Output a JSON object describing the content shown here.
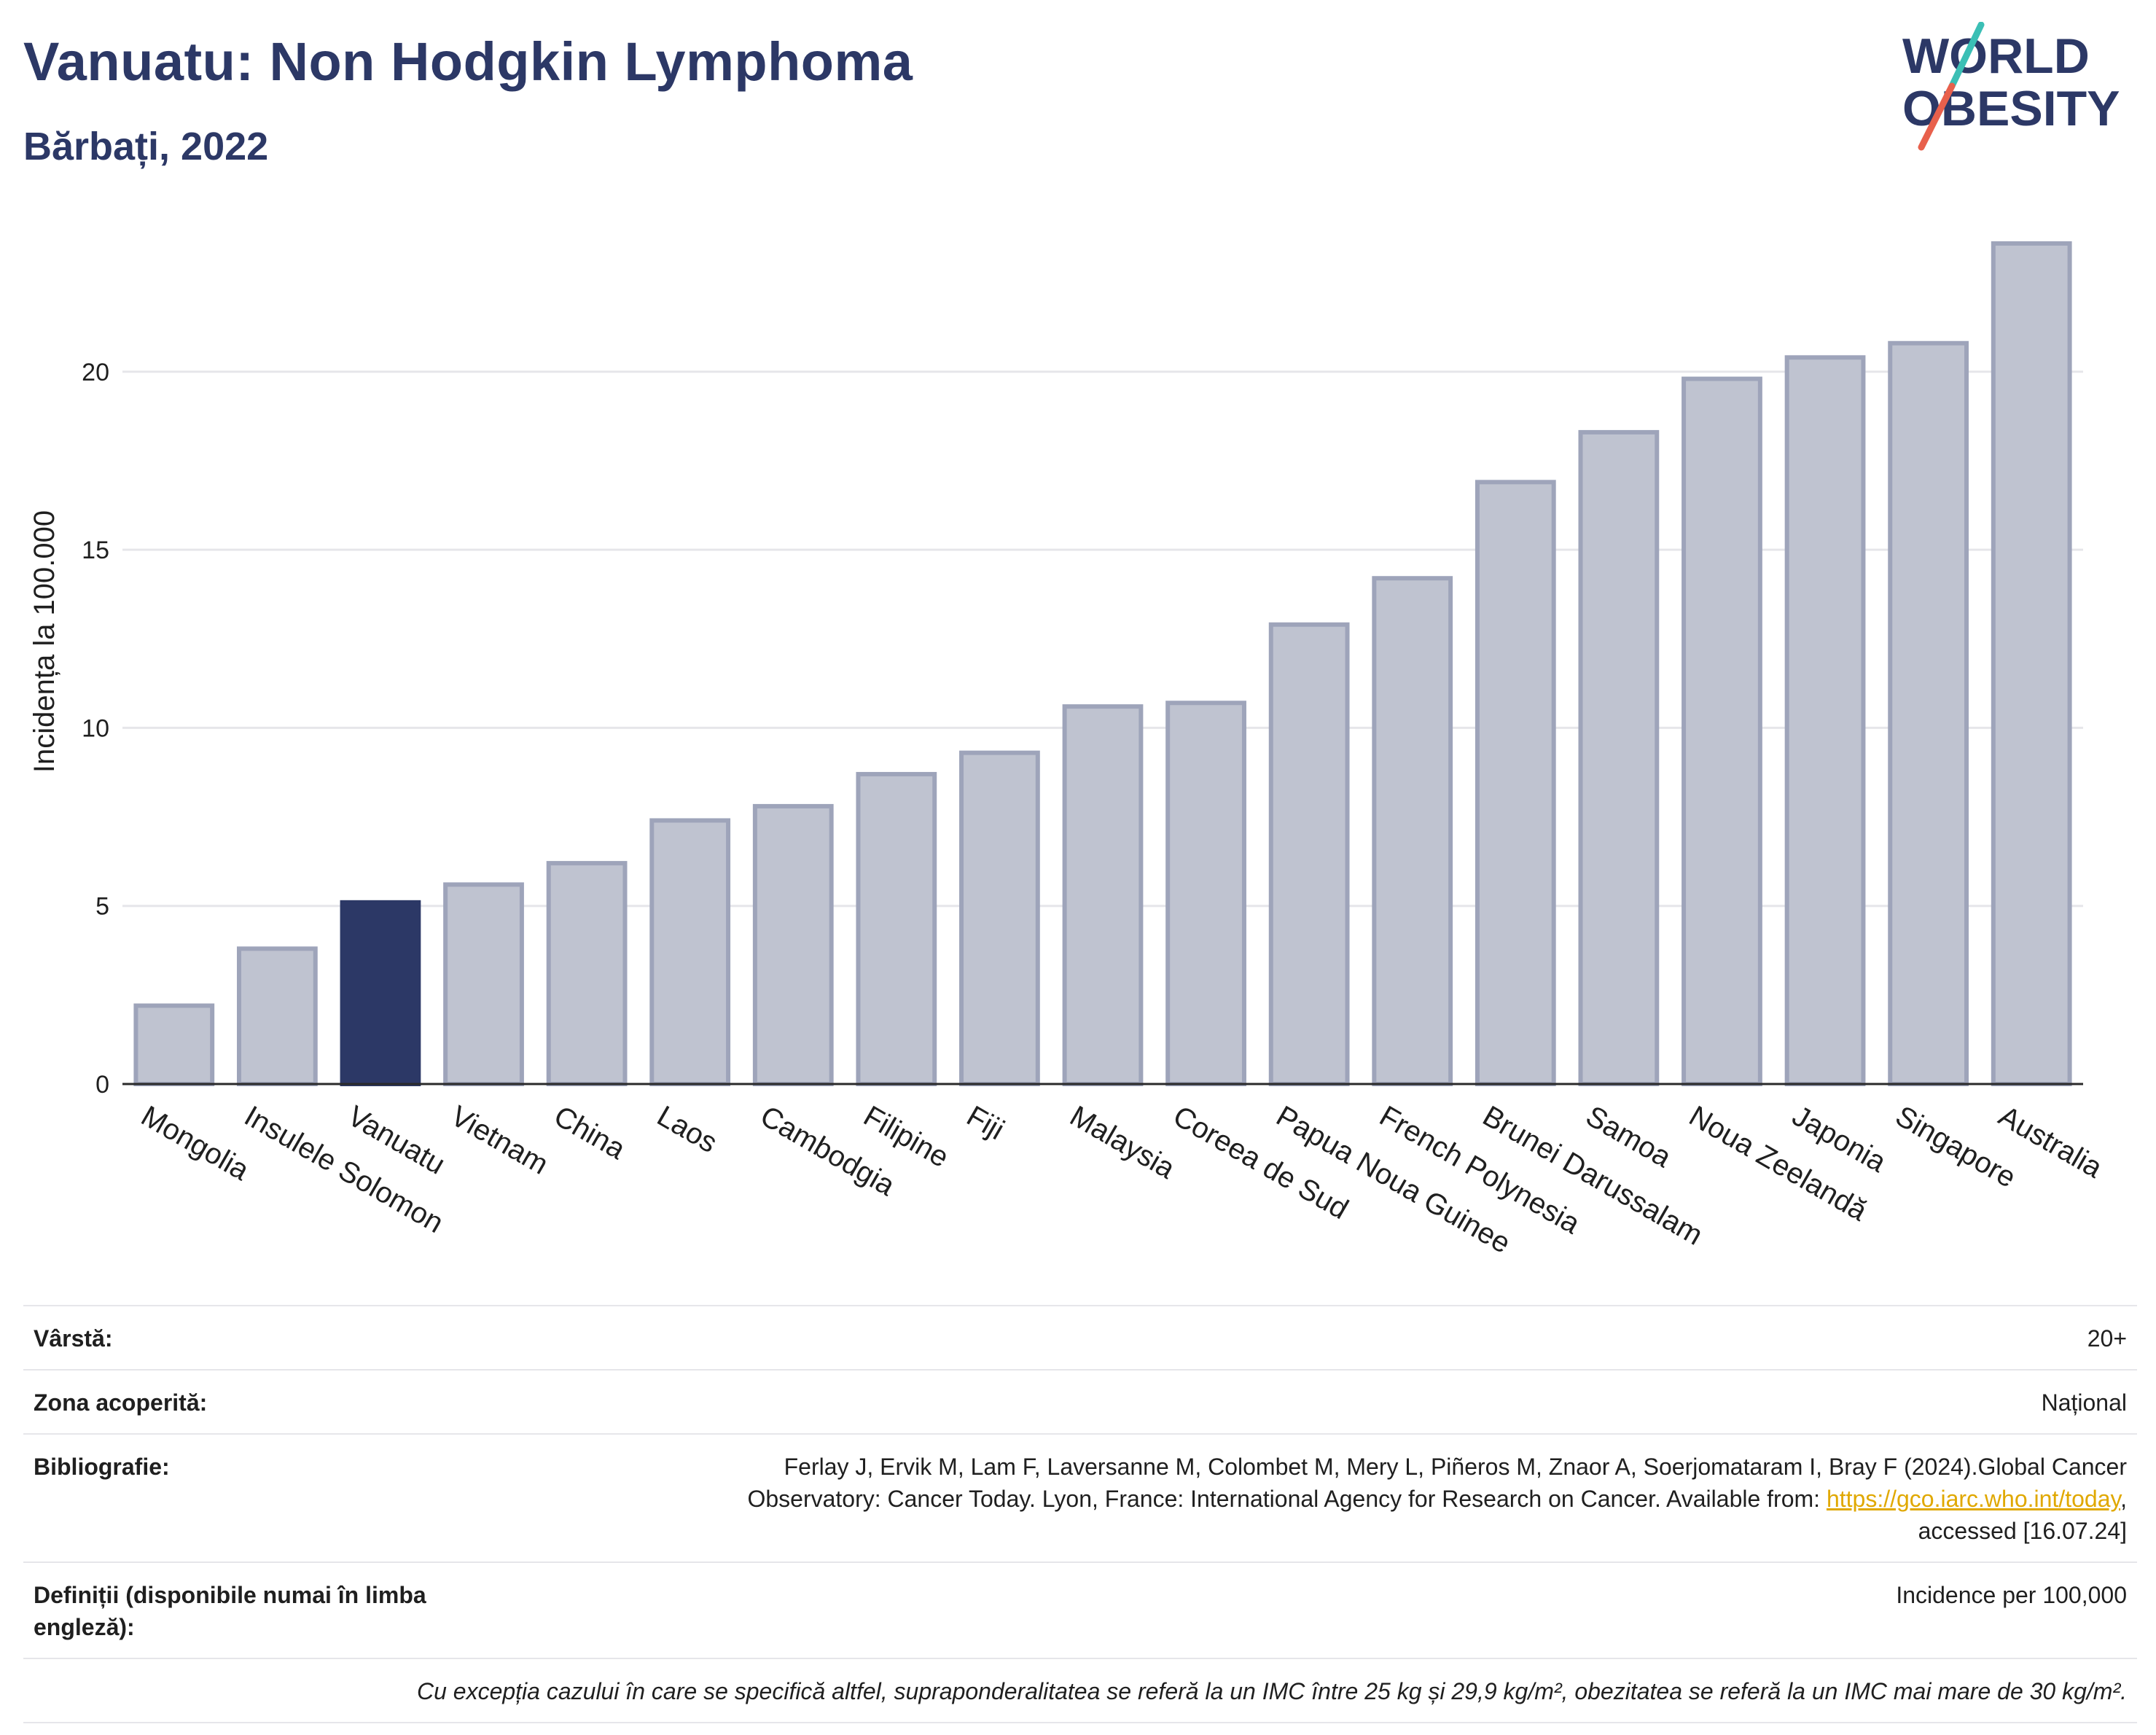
{
  "header": {
    "title": "Vanuatu: Non Hodgkin Lymphoma",
    "subtitle": "Bărbați, 2022"
  },
  "logo": {
    "line1": "WORLD",
    "line2": "OBESITY",
    "colors": {
      "text": "#2c3866",
      "slash_top": "#3bbfb5",
      "slash_bottom": "#e8604c"
    }
  },
  "chart_data": {
    "type": "bar",
    "ylabel": "Incidența la 100.000",
    "ylim": [
      0,
      24.5
    ],
    "yticks": [
      0,
      5,
      10,
      15,
      20
    ],
    "grid": true,
    "highlight": "Vanuatu",
    "colors": {
      "bar": "#bfc3d0",
      "bar_edge": "#9ea4ba",
      "highlight": "#2c3866",
      "grid": "#e6e6ea"
    },
    "categories": [
      "Mongolia",
      "Insulele Solomon",
      "Vanuatu",
      "Vietnam",
      "China",
      "Laos",
      "Cambodgia",
      "Filipine",
      "Fiji",
      "Malaysia",
      "Coreea de Sud",
      "Papua Noua Guinee",
      "French Polynesia",
      "Brunei Darussalam",
      "Samoa",
      "Noua Zeelandă",
      "Japonia",
      "Singapore",
      "Australia"
    ],
    "values": [
      2.2,
      3.8,
      5.1,
      5.6,
      6.2,
      7.4,
      7.8,
      8.7,
      9.3,
      10.6,
      10.7,
      12.9,
      14.2,
      16.9,
      18.3,
      19.8,
      20.4,
      20.8,
      23.6
    ]
  },
  "info": {
    "age_label": "Vârstă:",
    "age_value": "20+",
    "coverage_label": "Zona acoperită:",
    "coverage_value": "Național",
    "bibliography_label": "Bibliografie:",
    "bibliography_line1": "Ferlay J, Ervik M, Lam F, Laversanne M, Colombet M, Mery L, Piñeros M, Znaor A, Soerjomataram I, Bray F (2024).Global Cancer",
    "bibliography_line2_pre": "Observatory: Cancer Today. Lyon, France: International Agency for Research on Cancer. Available from: ",
    "bibliography_link": "https://gco.iarc.who.int/today",
    "bibliography_line2_post": ",",
    "bibliography_line3": "accessed [16.07.24]",
    "definitions_label": "Definiții (disponibile numai în limba engleză):",
    "definitions_value": "Incidence per 100,000",
    "footnote": "Cu excepția cazului în care se specifică altfel, supraponderalitatea se referă la un IMC între 25 kg și 29,9 kg/m², obezitatea se referă la un IMC mai mare de 30 kg/m²."
  }
}
